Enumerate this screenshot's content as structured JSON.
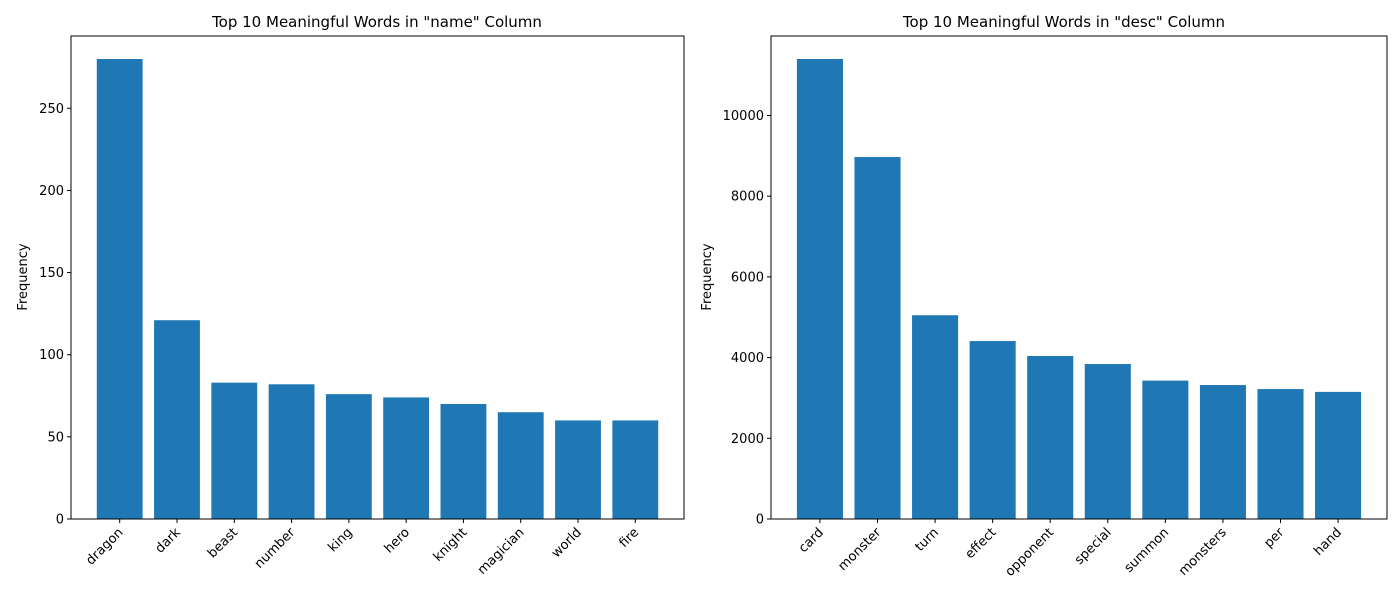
{
  "chart_data": [
    {
      "type": "bar",
      "title": "Top 10 Meaningful Words in \"name\" Column",
      "xlabel": "",
      "ylabel": "Frequency",
      "categories": [
        "dragon",
        "dark",
        "beast",
        "number",
        "king",
        "hero",
        "knight",
        "magician",
        "world",
        "fire"
      ],
      "values": [
        280,
        121,
        83,
        82,
        76,
        74,
        70,
        65,
        60,
        60
      ],
      "ylim": [
        0,
        294
      ],
      "yticks": [
        0,
        50,
        100,
        150,
        200,
        250
      ],
      "color": "#1f77b4",
      "grid": false
    },
    {
      "type": "bar",
      "title": "Top 10 Meaningful Words in \"desc\" Column",
      "xlabel": "",
      "ylabel": "Frequency",
      "categories": [
        "card",
        "monster",
        "turn",
        "effect",
        "opponent",
        "special",
        "summon",
        "monsters",
        "per",
        "hand"
      ],
      "values": [
        11400,
        8970,
        5050,
        4410,
        4040,
        3840,
        3430,
        3320,
        3220,
        3150
      ],
      "ylim": [
        0,
        11970
      ],
      "yticks": [
        0,
        2000,
        4000,
        6000,
        8000,
        10000
      ],
      "color": "#1f77b4",
      "grid": false
    }
  ]
}
